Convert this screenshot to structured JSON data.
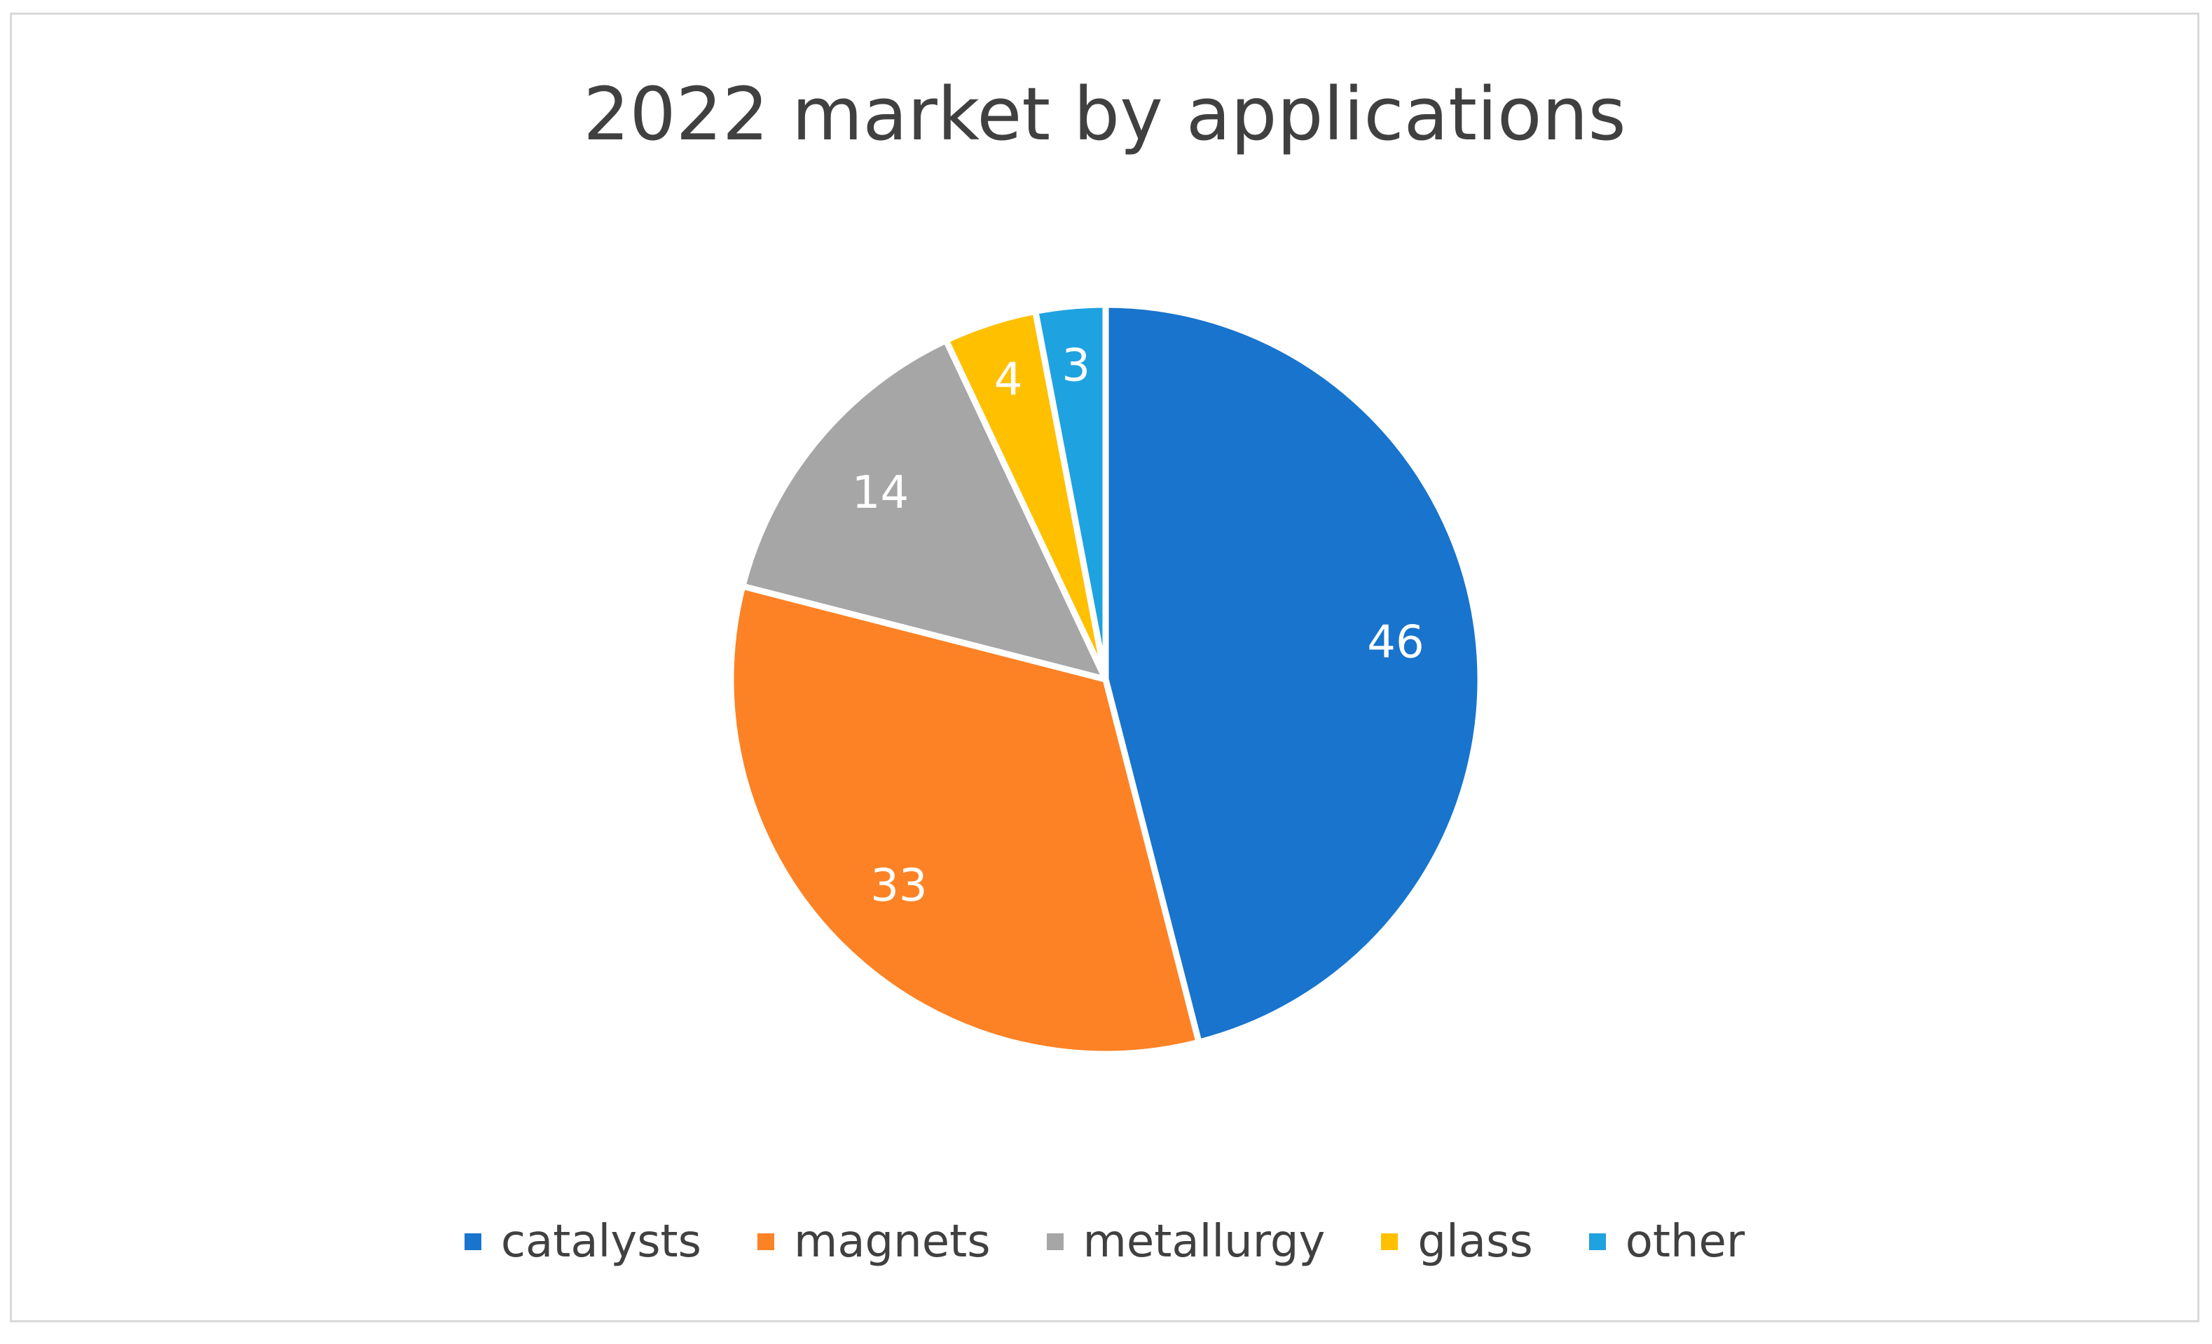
{
  "chart_data": {
    "type": "pie",
    "title": "2022 market by applications",
    "categories": [
      "catalysts",
      "magnets",
      "metallurgy",
      "glass",
      "other"
    ],
    "values": [
      46,
      33,
      14,
      4,
      3
    ],
    "colors": [
      "#1874cd",
      "#fd8225",
      "#a6a6a6",
      "#ffc000",
      "#1fa2e0"
    ],
    "data_labels_shown": true,
    "legend_position": "bottom"
  }
}
